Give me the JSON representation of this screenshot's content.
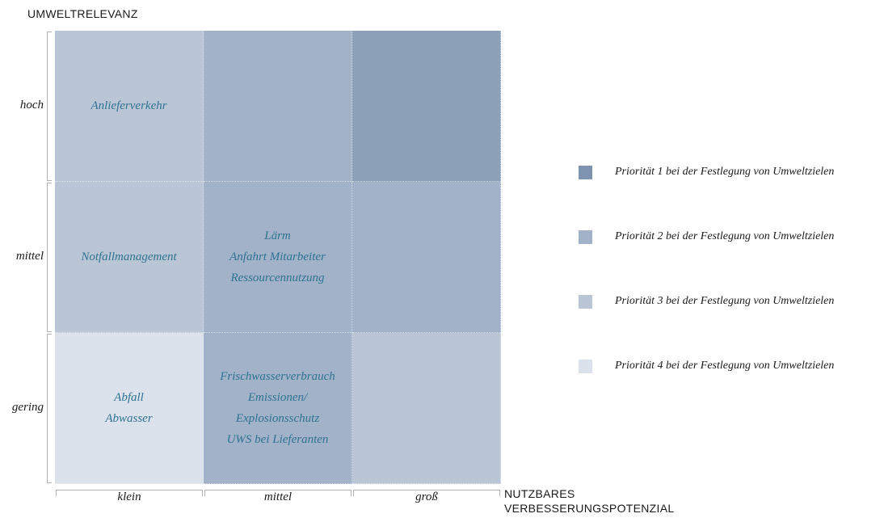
{
  "chart_data": {
    "type": "heatmap",
    "title": "",
    "ylabel": "UMWELTRELEVANZ",
    "xlabel": [
      "NUTZBARES",
      "VERBESSERUNGSPOTENZIAL"
    ],
    "y_categories": [
      "hoch",
      "mittel",
      "gering"
    ],
    "x_categories": [
      "klein",
      "mittel",
      "groß"
    ],
    "priority_colors": {
      "1": "#8ca0b8",
      "2": "#a2b2c9",
      "3": "#bac6d6",
      "4": "#dce2ec"
    },
    "cells": [
      {
        "y": "hoch",
        "x": "klein",
        "priority": 3,
        "items": [
          "Anlieferverkehr"
        ]
      },
      {
        "y": "hoch",
        "x": "mittel",
        "priority": 2,
        "items": []
      },
      {
        "y": "hoch",
        "x": "groß",
        "priority": 1,
        "items": []
      },
      {
        "y": "mittel",
        "x": "klein",
        "priority": 3,
        "items": [
          "Notfallmanagement"
        ]
      },
      {
        "y": "mittel",
        "x": "mittel",
        "priority": 2,
        "items": [
          "Lärm",
          "Anfahrt Mitarbeiter",
          "Ressourcennutzung"
        ]
      },
      {
        "y": "mittel",
        "x": "groß",
        "priority": 2,
        "items": []
      },
      {
        "y": "gering",
        "x": "klein",
        "priority": 4,
        "items": [
          "Abfall",
          "Abwasser"
        ]
      },
      {
        "y": "gering",
        "x": "mittel",
        "priority": 2,
        "items": [
          "Frischwasserverbrauch",
          "Emissionen/",
          "Explosionsschutz",
          "UWS bei Lieferanten"
        ]
      },
      {
        "y": "gering",
        "x": "groß",
        "priority": 3,
        "items": []
      }
    ],
    "legend": [
      {
        "priority": 1,
        "label": "Priorität 1 bei der Festlegung von Umweltzielen"
      },
      {
        "priority": 2,
        "label": "Priorität 2 bei der Festlegung von Umweltzielen"
      },
      {
        "priority": 3,
        "label": "Priorität 3 bei der Festlegung von Umweltzielen"
      },
      {
        "priority": 4,
        "label": "Priorität 4 bei der Festlegung von Umweltzielen"
      }
    ],
    "legend_placement": "right",
    "grid": true
  }
}
